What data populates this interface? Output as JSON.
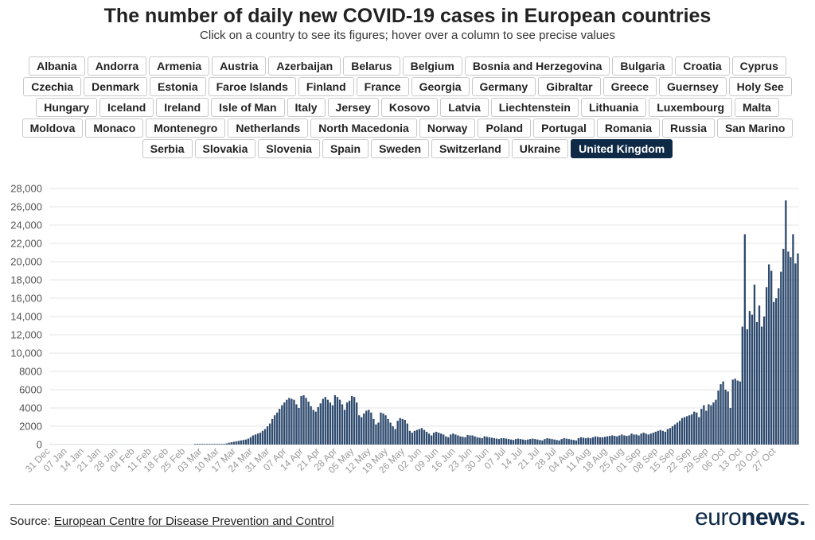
{
  "header": {
    "title": "The number of daily new COVID-19 cases in European countries",
    "subtitle": "Click on a country to see its figures; hover over a column to see precise values"
  },
  "countries": [
    "Albania",
    "Andorra",
    "Armenia",
    "Austria",
    "Azerbaijan",
    "Belarus",
    "Belgium",
    "Bosnia and Herzegovina",
    "Bulgaria",
    "Croatia",
    "Cyprus",
    "Czechia",
    "Denmark",
    "Estonia",
    "Faroe Islands",
    "Finland",
    "France",
    "Georgia",
    "Germany",
    "Gibraltar",
    "Greece",
    "Guernsey",
    "Holy See",
    "Hungary",
    "Iceland",
    "Ireland",
    "Isle of Man",
    "Italy",
    "Jersey",
    "Kosovo",
    "Latvia",
    "Liechtenstein",
    "Lithuania",
    "Luxembourg",
    "Malta",
    "Moldova",
    "Monaco",
    "Montenegro",
    "Netherlands",
    "North Macedonia",
    "Norway",
    "Poland",
    "Portugal",
    "Romania",
    "Russia",
    "San Marino",
    "Serbia",
    "Slovakia",
    "Slovenia",
    "Spain",
    "Sweden",
    "Switzerland",
    "Ukraine",
    "United Kingdom"
  ],
  "selected_country": "United Kingdom",
  "colors": {
    "bar": "#2e4a6e",
    "active_button": "#0f2a47",
    "grid": "#e4e4e4"
  },
  "footer": {
    "source_prefix": "Source: ",
    "source_link": "European Centre for Disease Prevention and Control",
    "logo_part1": "euro",
    "logo_part2": "news."
  },
  "chart_data": {
    "type": "bar",
    "x_tick_labels": [
      "31 Dec",
      "07 Jan",
      "14 Jan",
      "21 Jan",
      "28 Jan",
      "04 Feb",
      "11 Feb",
      "18 Feb",
      "25 Feb",
      "03 Mar",
      "10 Mar",
      "17 Mar",
      "24 Mar",
      "31 Mar",
      "07 Apr",
      "14 Apr",
      "21 Apr",
      "28 Apr",
      "05 May",
      "12 May",
      "19 May",
      "26 May",
      "02 Jun",
      "09 Jun",
      "16 Jun",
      "23 Jun",
      "30 Jun",
      "07 Jul",
      "14 Jul",
      "21 Jul",
      "28 Jul",
      "04 Aug",
      "11 Aug",
      "18 Aug",
      "25 Aug",
      "01 Sep",
      "08 Sep",
      "15 Sep",
      "22 Sep",
      "29 Sep",
      "06 Oct",
      "13 Oct",
      "20 Oct",
      "27 Oct"
    ],
    "y_tick_labels": [
      "0",
      "2000",
      "4000",
      "6000",
      "8000",
      "10,000",
      "12,000",
      "14,000",
      "16,000",
      "18,000",
      "20,000",
      "22,000",
      "24,000",
      "26,000",
      "28,000"
    ],
    "ylim": [
      0,
      28000
    ],
    "grid": true,
    "series": [
      {
        "values": [
          0,
          0,
          0,
          0,
          0,
          0,
          0,
          0,
          0,
          0,
          0,
          0,
          0,
          0,
          0,
          0,
          0,
          0,
          0,
          0,
          0,
          0,
          0,
          0,
          0,
          0,
          0,
          0,
          0,
          0,
          0,
          0,
          0,
          0,
          0,
          0,
          0,
          0,
          0,
          0,
          0,
          0,
          0,
          0,
          0,
          0,
          0,
          0,
          0,
          0,
          0,
          0,
          0,
          0,
          0,
          0,
          0,
          0,
          0,
          0,
          2,
          3,
          4,
          6,
          8,
          10,
          12,
          20,
          30,
          40,
          50,
          60,
          80,
          120,
          200,
          250,
          300,
          350,
          400,
          450,
          500,
          550,
          650,
          800,
          1000,
          1100,
          1200,
          1300,
          1500,
          1700,
          2000,
          2300,
          2800,
          3200,
          3500,
          3900,
          4300,
          4600,
          4900,
          5100,
          5000,
          4900,
          4400,
          4000,
          5300,
          5400,
          5100,
          4700,
          4200,
          3800,
          3600,
          4100,
          4500,
          5000,
          5200,
          4900,
          4600,
          4300,
          5400,
          5200,
          4900,
          4400,
          3800,
          4600,
          4800,
          5300,
          5200,
          4600,
          3200,
          3000,
          3400,
          3700,
          3800,
          3500,
          2800,
          2200,
          2400,
          3500,
          3400,
          3200,
          2800,
          2400,
          2000,
          1700,
          2600,
          2900,
          2800,
          2700,
          2300,
          1500,
          1300,
          1500,
          1600,
          1700,
          1800,
          1600,
          1400,
          1200,
          1000,
          1300,
          1400,
          1300,
          1200,
          1100,
          900,
          800,
          1100,
          1200,
          1100,
          1000,
          900,
          850,
          800,
          1050,
          1000,
          1000,
          900,
          800,
          750,
          700,
          900,
          850,
          800,
          750,
          700,
          650,
          600,
          700,
          700,
          650,
          600,
          550,
          500,
          600,
          650,
          600,
          550,
          500,
          550,
          600,
          650,
          600,
          550,
          500,
          450,
          600,
          700,
          650,
          600,
          550,
          500,
          450,
          600,
          700,
          650,
          600,
          550,
          500,
          450,
          700,
          800,
          750,
          700,
          750,
          700,
          800,
          900,
          850,
          800,
          800,
          850,
          900,
          950,
          1000,
          950,
          900,
          1000,
          1100,
          1000,
          950,
          1000,
          1200,
          1100,
          1100,
          1000,
          1200,
          1300,
          1200,
          1100,
          1200,
          1300,
          1400,
          1500,
          1600,
          1500,
          1400,
          1700,
          1800,
          2000,
          2200,
          2400,
          2600,
          2900,
          3000,
          3100,
          3200,
          3300,
          3600,
          3500,
          3000,
          3900,
          4300,
          3700,
          4400,
          4300,
          4600,
          4900,
          5900,
          6600,
          6900,
          6000,
          5800,
          4000,
          7100,
          7200,
          7000,
          6900,
          12900,
          23000,
          12600,
          14600,
          14200,
          17500,
          13400,
          15200,
          12900,
          14000,
          17200,
          19700,
          19000,
          15600,
          16000,
          17100,
          18900,
          21400,
          26700,
          21100,
          20500,
          23000,
          19800,
          20900
        ]
      }
    ]
  }
}
